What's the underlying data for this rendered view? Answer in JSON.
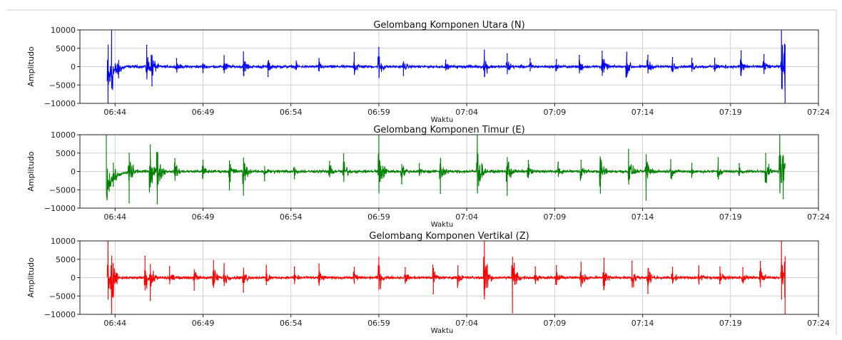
{
  "chart_data": [
    {
      "type": "line",
      "title": "Gelombang Komponen Utara (N)",
      "xlabel": "Waktu",
      "ylabel": "Amplitudo",
      "xlim": [
        "06:42",
        "07:24"
      ],
      "ylim": [
        -10000,
        10000
      ],
      "x_ticks": [
        "06:44",
        "06:49",
        "06:54",
        "06:59",
        "07:04",
        "07:09",
        "07:14",
        "07:19",
        "07:24"
      ],
      "y_ticks": [
        10000,
        5000,
        0,
        -5000,
        -10000
      ],
      "grid": true,
      "series": [
        {
          "color": "#0000ff",
          "x": [
            "06:43.6",
            "06:43.8",
            "06:44.2",
            "06:45.8",
            "06:46.1",
            "06:47.5",
            "06:49.0",
            "06:50.2",
            "06:51.3",
            "06:52.7",
            "06:54.3",
            "06:55.6",
            "06:57.6",
            "06:59.0",
            "07:00.4",
            "07:02.8",
            "07:05.0",
            "07:06.3",
            "07:07.6",
            "07:09.1",
            "07:10.4",
            "07:11.7",
            "07:13.1",
            "07:14.3",
            "07:15.7",
            "07:16.8",
            "07:18.1",
            "07:19.6",
            "07:20.9",
            "07:21.9",
            "07:22.1"
          ],
          "values": [
            -10000,
            10000,
            -3000,
            5800,
            -5200,
            2200,
            -1600,
            3000,
            4000,
            -2700,
            1500,
            2200,
            3800,
            5200,
            -2400,
            1800,
            4500,
            3500,
            2100,
            1900,
            3100,
            4200,
            3900,
            3100,
            2500,
            2300,
            2300,
            4300,
            3300,
            10000,
            -10000
          ]
        }
      ]
    },
    {
      "type": "line",
      "title": "Gelombang Komponen Timur (E)",
      "xlabel": "Waktu",
      "ylabel": "Amplitudo",
      "xlim": [
        "06:42",
        "07:24"
      ],
      "ylim": [
        -10000,
        10000
      ],
      "x_ticks": [
        "06:44",
        "06:49",
        "06:54",
        "06:59",
        "07:04",
        "07:09",
        "07:14",
        "07:19",
        "07:24"
      ],
      "y_ticks": [
        10000,
        5000,
        0,
        -5000,
        -10000
      ],
      "grid": true,
      "series": [
        {
          "color": "#008000",
          "x": [
            "06:43.5",
            "06:43.9",
            "06:44.8",
            "06:46.0",
            "06:46.4",
            "06:47.4",
            "06:49.0",
            "06:50.5",
            "06:51.3",
            "06:52.5",
            "06:54.2",
            "06:56.2",
            "06:57.0",
            "06:59.0",
            "07:00.3",
            "07:01.3",
            "07:02.5",
            "07:04.6",
            "07:06.3",
            "07:07.5",
            "07:09.2",
            "07:10.5",
            "07:11.6",
            "07:13.2",
            "07:14.2",
            "07:15.6",
            "07:16.8",
            "07:18.3",
            "07:19.5",
            "07:21.0",
            "07:21.8",
            "07:22.0"
          ],
          "values": [
            10000,
            -4000,
            -8500,
            7200,
            -8800,
            3500,
            3000,
            -5000,
            -6400,
            -2500,
            -2000,
            2700,
            4800,
            10000,
            -3400,
            2100,
            -6000,
            10000,
            -6500,
            3000,
            2500,
            3100,
            -5900,
            6000,
            -7800,
            3200,
            2200,
            3700,
            2100,
            4900,
            10000,
            -7400
          ]
        }
      ]
    },
    {
      "type": "line",
      "title": "Gelombang Komponen Vertikal (Z)",
      "xlabel": "Waktu",
      "ylabel": "Amplitudo",
      "xlim": [
        "06:42",
        "07:24"
      ],
      "ylim": [
        -10000,
        10000
      ],
      "x_ticks": [
        "06:44",
        "06:49",
        "06:54",
        "06:59",
        "07:04",
        "07:09",
        "07:14",
        "07:19",
        "07:24"
      ],
      "y_ticks": [
        10000,
        5000,
        0,
        -5000,
        -10000
      ],
      "grid": true,
      "series": [
        {
          "color": "#ff0000",
          "x": [
            "06:43.6",
            "06:43.8",
            "06:45.7",
            "06:46.0",
            "06:47.1",
            "06:48.5",
            "06:49.6",
            "06:50.2",
            "06:51.3",
            "06:52.6",
            "06:54.2",
            "06:55.6",
            "06:57.6",
            "06:59.0",
            "07:00.5",
            "07:02.1",
            "07:03.5",
            "07:05.0",
            "07:06.6",
            "07:07.9",
            "07:09.1",
            "07:10.5",
            "07:11.8",
            "07:13.4",
            "07:14.3",
            "07:15.7",
            "07:17.2",
            "07:18.4",
            "07:19.7",
            "07:20.7",
            "07:21.9",
            "07:22.1"
          ],
          "values": [
            10000,
            -10000,
            5800,
            -6200,
            3000,
            -3400,
            4600,
            3800,
            -3900,
            3400,
            2900,
            3700,
            2800,
            5500,
            2700,
            -4400,
            3200,
            10000,
            -9500,
            2900,
            3300,
            4200,
            5300,
            4500,
            -4300,
            2800,
            3200,
            2900,
            2700,
            4400,
            10000,
            -9700
          ]
        }
      ]
    }
  ]
}
